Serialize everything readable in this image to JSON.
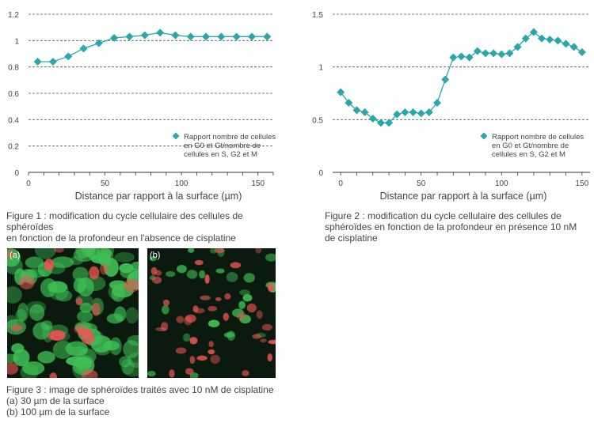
{
  "chart_data": [
    {
      "type": "line",
      "title": "",
      "xlabel": "Distance par rapport à la surface (µm)",
      "ylabel": "",
      "xlim": [
        0,
        160
      ],
      "ylim": [
        0,
        1.2
      ],
      "x_ticks": [
        "0",
        "50",
        "100",
        "150"
      ],
      "y_ticks": [
        "0",
        "0.2",
        "0.4",
        "0.6",
        "0.8",
        "1",
        "1.2"
      ],
      "grid": "horizontal dashed",
      "legend_position": "right",
      "series": [
        {
          "name": "Rapport nombre de cellules en G0 et G1/nombre de cellules en S, G2 et M",
          "name_lines": [
            "Rapport nombre de cellules",
            "en G0 et Gt/nombre de",
            "cellules en S, G2 et M"
          ],
          "color": "#2aa6ad",
          "x": [
            6,
            16,
            26,
            36,
            46,
            56,
            66,
            76,
            86,
            96,
            106,
            116,
            126,
            136,
            146,
            156
          ],
          "y": [
            0.84,
            0.84,
            0.88,
            0.94,
            0.98,
            1.02,
            1.03,
            1.04,
            1.06,
            1.04,
            1.03,
            1.03,
            1.03,
            1.03,
            1.03,
            1.03
          ]
        }
      ]
    },
    {
      "type": "line",
      "title": "",
      "xlabel": "Distance par rapport à la surface (µm)",
      "ylabel": "",
      "xlim": [
        -5,
        155
      ],
      "ylim": [
        0,
        1.5
      ],
      "x_ticks": [
        "0",
        "50",
        "100",
        "150"
      ],
      "y_ticks": [
        "0",
        "0.5",
        "1",
        "1.5"
      ],
      "grid": "horizontal dashed",
      "legend_position": "right",
      "series": [
        {
          "name": "Rapport nombre de cellules en G0 et G1/nombre de cellules en S, G2 et M",
          "name_lines": [
            "Rapport nombre de cellules",
            "en G0 et Gt/nombre de",
            "cellules en S, G2 et M"
          ],
          "color": "#2aa6ad",
          "x": [
            0,
            5,
            10,
            15,
            20,
            25,
            30,
            35,
            40,
            45,
            50,
            55,
            60,
            65,
            70,
            75,
            80,
            85,
            90,
            95,
            100,
            105,
            110,
            115,
            120,
            125,
            130,
            135,
            140,
            145,
            150
          ],
          "y": [
            0.76,
            0.66,
            0.59,
            0.57,
            0.51,
            0.47,
            0.47,
            0.55,
            0.57,
            0.57,
            0.56,
            0.57,
            0.66,
            0.88,
            1.09,
            1.1,
            1.09,
            1.15,
            1.13,
            1.13,
            1.12,
            1.13,
            1.19,
            1.27,
            1.33,
            1.27,
            1.26,
            1.25,
            1.22,
            1.19,
            1.14
          ]
        }
      ]
    }
  ],
  "captions": {
    "fig1": [
      "Figure 1 : modification du cycle cellulaire des cellules de sphéroïdes",
      "en fonction de la profondeur en l'absence de cisplatine"
    ],
    "fig2": [
      "Figure 2 : modification du cycle cellulaire des cellules de",
      "sphéroïdes en fonction de la profondeur en présence 10 nM",
      "de cisplatine"
    ],
    "fig3": [
      "Figure 3 : image de sphéroïdes traités avec 10 nM de cisplatine",
      "(a) 30 µm de la surface",
      "(b) 100 µm de la surface"
    ]
  },
  "photos": {
    "a_label": "(a)",
    "b_label": "(b)",
    "colors": {
      "green": "#3fbf55",
      "red": "#f05555",
      "background": "#0b1a0e"
    }
  }
}
